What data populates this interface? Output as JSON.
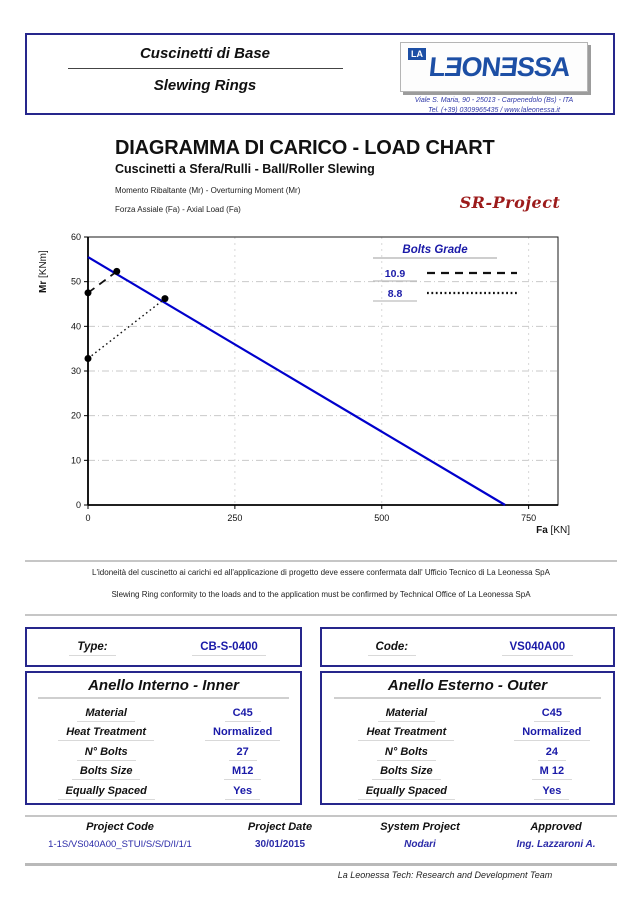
{
  "header": {
    "brand_line1": "Cuscinetti di Base",
    "brand_line2": "Slewing Rings",
    "logo_prefix": "LA",
    "logo_name": "LƎONƎSSA",
    "address_line1": "Viale S. Maria, 90 - 25013 - Carpenedolo (Bs) - ITA",
    "address_line2": "Tel. (+39) 0309965435 / www.laleonessa.it"
  },
  "title_block": {
    "title": "DIAGRAMMA DI CARICO - LOAD CHART",
    "subtitle": "Cuscinetti a Sfera/Rulli - Ball/Roller Slewing",
    "line1": "Momento Ribaltante (Mr) - Overturning Moment (Mr)",
    "line2": "Forza Assiale (Fa) - Axial Load (Fa)",
    "project_logo": "SR-Project"
  },
  "chart_data": {
    "type": "line",
    "xlabel": "Fa [KN]",
    "ylabel": "Mr [KNm]",
    "xlabel_bold": "Fa",
    "xlabel_unit": " [KN]",
    "ylabel_bold": "Mr",
    "ylabel_unit": " [KNm]",
    "xlim": [
      0,
      800
    ],
    "ylim": [
      0,
      60
    ],
    "xticks": [
      0,
      250,
      500,
      750
    ],
    "yticks": [
      0,
      10,
      20,
      30,
      40,
      50,
      60
    ],
    "grid": true,
    "legend": {
      "title": "Bolts Grade",
      "position": "top-right",
      "items": [
        {
          "label": "10.9",
          "style": "dashed"
        },
        {
          "label": "8.8",
          "style": "dotted"
        }
      ]
    },
    "series": [
      {
        "name": "load-limit-curve",
        "style": "solid",
        "color": "#0000cc",
        "width": 2.2,
        "markers": false,
        "points": [
          [
            0,
            55.5
          ],
          [
            710,
            0
          ]
        ]
      },
      {
        "name": "bolts-grade-10.9",
        "style": "dashed",
        "color": "#111111",
        "width": 1.8,
        "markers": true,
        "points": [
          [
            0,
            47.5
          ],
          [
            49,
            52.3
          ]
        ]
      },
      {
        "name": "bolts-grade-8.8",
        "style": "dotted",
        "color": "#111111",
        "width": 1.4,
        "markers": true,
        "points": [
          [
            0,
            32.8
          ],
          [
            131,
            46.2
          ]
        ]
      }
    ]
  },
  "notes": {
    "line1": "L'idoneità del cuscinetto ai carichi ed all'applicazione di progetto deve essere confermata dall' Ufficio Tecnico di La Leonessa SpA",
    "line2": "Slewing Ring conformity to the loads and to the application must be confirmed by Technical Office of La Leonessa SpA"
  },
  "identity": {
    "type_label": "Type:",
    "type_value": "CB-S-0400",
    "code_label": "Code:",
    "code_value": "VS040A00"
  },
  "tables": {
    "inner": {
      "title": "Anello Interno - Inner",
      "rows": [
        {
          "label": "Material",
          "value": "C45"
        },
        {
          "label": "Heat Treatment",
          "value": "Normalized"
        },
        {
          "label": "N° Bolts",
          "value": "27"
        },
        {
          "label": "Bolts Size",
          "value": "M12"
        },
        {
          "label": "Equally Spaced",
          "value": "Yes"
        }
      ]
    },
    "outer": {
      "title": "Anello Esterno - Outer",
      "rows": [
        {
          "label": "Material",
          "value": "C45"
        },
        {
          "label": "Heat Treatment",
          "value": "Normalized"
        },
        {
          "label": "N° Bolts",
          "value": "24"
        },
        {
          "label": "Bolts Size",
          "value": "M 12"
        },
        {
          "label": "Equally Spaced",
          "value": "Yes"
        }
      ]
    }
  },
  "footer": {
    "cols": [
      {
        "label": "Project Code",
        "value": "1-1S/VS040A00_STUI/S/S/D/I/1/1"
      },
      {
        "label": "Project Date",
        "value": "30/01/2015"
      },
      {
        "label": "System Project",
        "value": "Nodari"
      },
      {
        "label": "Approved",
        "value": "Ing. Lazzaroni A."
      }
    ],
    "tagline": "La Leonessa Tech: Research and Development Team"
  },
  "colors": {
    "navy_border": "#26268c",
    "value_blue": "#1a1aa8",
    "curve_blue": "#0000cc",
    "logo_blue": "#1d4fa5",
    "sr_red": "#9c1a1a",
    "rule_gray": "#c6c6c6"
  }
}
